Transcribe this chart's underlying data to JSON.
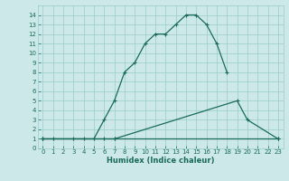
{
  "xlabel": "Humidex (Indice chaleur)",
  "xlim": [
    -0.5,
    23.5
  ],
  "ylim": [
    0,
    15
  ],
  "xticks": [
    0,
    1,
    2,
    3,
    4,
    5,
    6,
    7,
    8,
    9,
    10,
    11,
    12,
    13,
    14,
    15,
    16,
    17,
    18,
    19,
    20,
    21,
    22,
    23
  ],
  "yticks": [
    0,
    1,
    2,
    3,
    4,
    5,
    6,
    7,
    8,
    9,
    10,
    11,
    12,
    13,
    14
  ],
  "bg_color": "#cce8e8",
  "line_color": "#1a6b5a",
  "grid_color": "#99cccc",
  "line1_x": [
    0,
    1,
    3,
    4,
    5,
    6,
    7,
    8,
    9,
    10,
    11,
    12,
    13,
    14,
    15,
    16,
    17,
    18
  ],
  "line1_y": [
    1,
    1,
    1,
    1,
    1,
    3,
    5,
    8,
    9,
    11,
    12,
    12,
    13,
    14,
    14,
    13,
    11,
    8
  ],
  "line2_x": [
    0,
    6,
    7,
    19,
    20,
    23
  ],
  "line2_y": [
    1,
    1,
    1,
    5,
    3,
    1
  ],
  "line3_x": [
    0,
    7,
    23
  ],
  "line3_y": [
    1,
    1,
    1
  ],
  "marker_style": "+",
  "marker_size": 3.5,
  "linewidth": 0.9,
  "tick_fontsize": 5.0,
  "xlabel_fontsize": 6.0
}
